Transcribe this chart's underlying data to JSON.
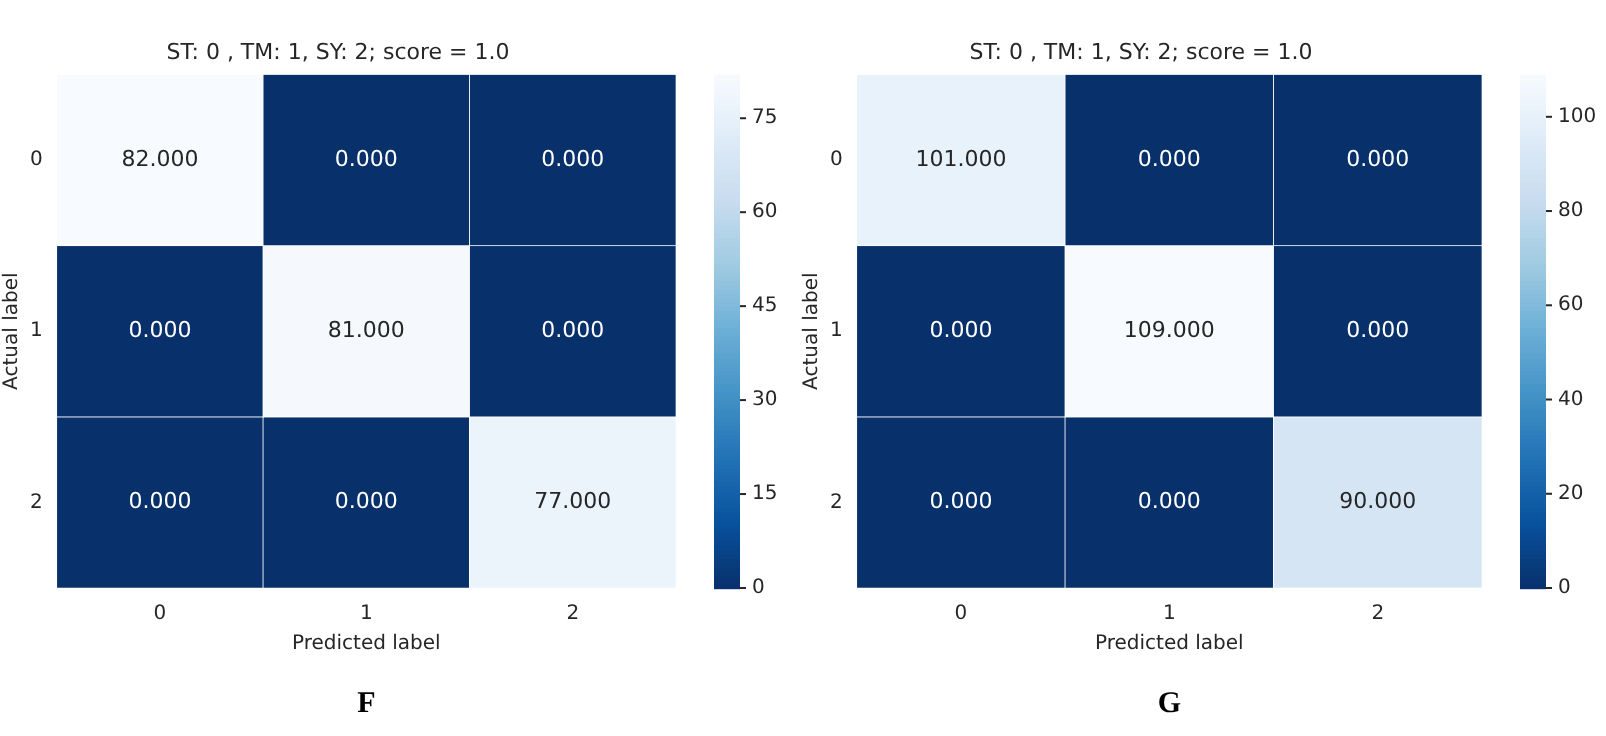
{
  "chart_data": [
    {
      "type": "heatmap",
      "title": "ST: 0 , TM: 1, SY: 2; score = 1.0",
      "xlabel": "Predicted label",
      "ylabel": "Actual label",
      "categories": [
        "0",
        "1",
        "2"
      ],
      "y_categories": [
        "0",
        "1",
        "2"
      ],
      "cells": [
        [
          82,
          0,
          0
        ],
        [
          0,
          81,
          0
        ],
        [
          0,
          0,
          77
        ]
      ],
      "cell_labels": [
        [
          "82.000",
          "0.000",
          "0.000"
        ],
        [
          "0.000",
          "81.000",
          "0.000"
        ],
        [
          "0.000",
          "0.000",
          "77.000"
        ]
      ],
      "clim": [
        0,
        82
      ],
      "cticks": [
        0,
        15,
        30,
        45,
        60,
        75
      ],
      "annotations": [
        "F"
      ]
    },
    {
      "type": "heatmap",
      "title": "ST: 0 , TM: 1, SY: 2; score = 1.0",
      "xlabel": "Predicted label",
      "ylabel": "Actual label",
      "categories": [
        "0",
        "1",
        "2"
      ],
      "y_categories": [
        "0",
        "1",
        "2"
      ],
      "cells": [
        [
          101,
          0,
          0
        ],
        [
          0,
          109,
          0
        ],
        [
          0,
          0,
          90
        ]
      ],
      "cell_labels": [
        [
          "101.000",
          "0.000",
          "0.000"
        ],
        [
          "0.000",
          "109.000",
          "0.000"
        ],
        [
          "0.000",
          "0.000",
          "90.000"
        ]
      ],
      "clim": [
        0,
        109
      ],
      "cticks": [
        0,
        20,
        40,
        60,
        80,
        100
      ],
      "annotations": [
        "G"
      ]
    }
  ]
}
